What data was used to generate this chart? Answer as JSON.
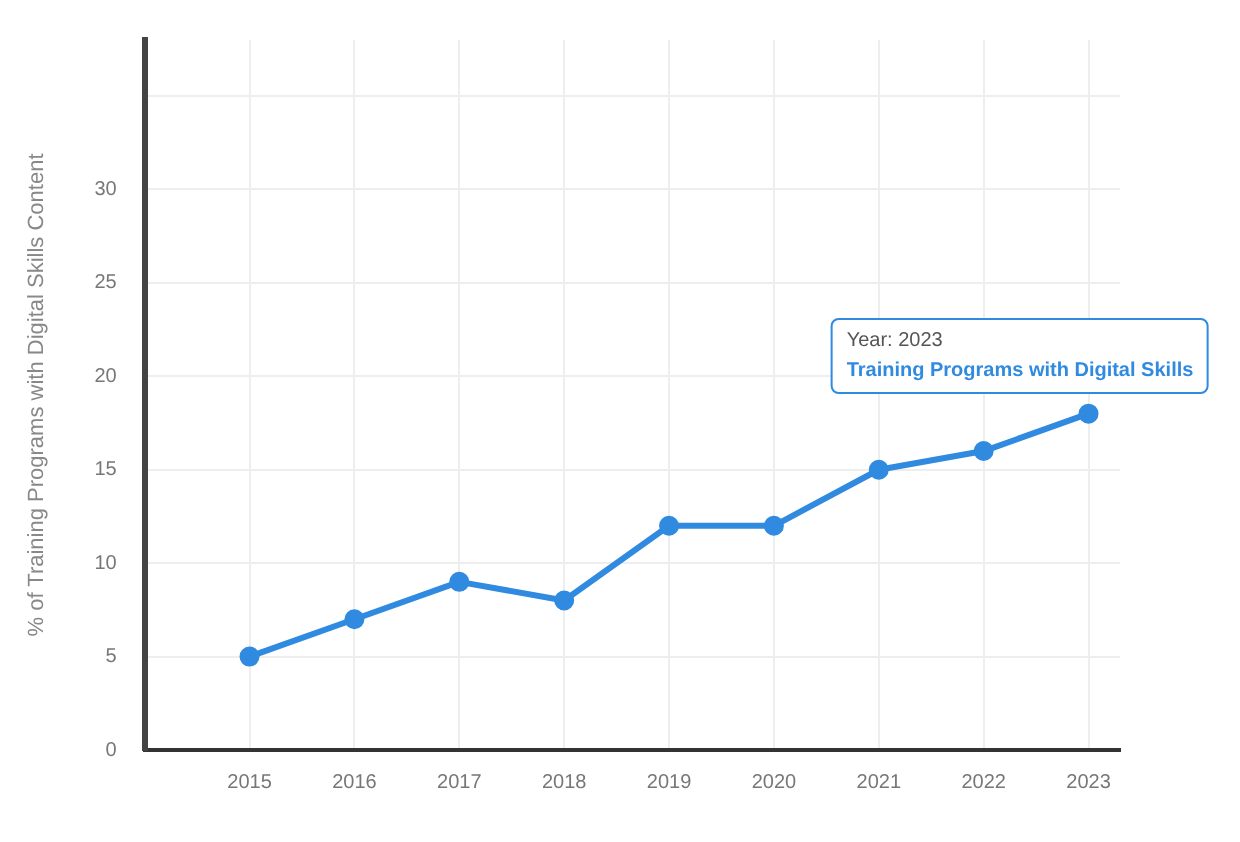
{
  "chart_data": {
    "type": "line",
    "ylabel": "% of Training Programs with Digital Skills Content",
    "x": [
      2015,
      2016,
      2017,
      2018,
      2019,
      2020,
      2021,
      2022,
      2023
    ],
    "xlim": [
      2014,
      2023.3
    ],
    "xticks": [
      {
        "value": 2015,
        "label": "2015"
      },
      {
        "value": 2016,
        "label": "2016"
      },
      {
        "value": 2017,
        "label": "2017"
      },
      {
        "value": 2018,
        "label": "2018"
      },
      {
        "value": 2019,
        "label": "2019"
      },
      {
        "value": 2020,
        "label": "2020"
      },
      {
        "value": 2021,
        "label": "2021"
      },
      {
        "value": 2022,
        "label": "2022"
      },
      {
        "value": 2023,
        "label": "2023"
      }
    ],
    "ylim": [
      0,
      38
    ],
    "yticks": [
      0,
      5,
      10,
      15,
      20,
      25,
      30,
      {
        "value": 35,
        "label": null
      }
    ],
    "series": [
      {
        "name": "Training Programs with Digital Skills",
        "color": "#2f8ae0",
        "values": [
          5,
          7,
          9,
          8,
          12,
          12,
          15,
          16,
          18
        ]
      }
    ],
    "annotations": [
      "Year: 2023"
    ],
    "grid": true,
    "legend": false,
    "marker": "circle",
    "line_style": "solid"
  }
}
